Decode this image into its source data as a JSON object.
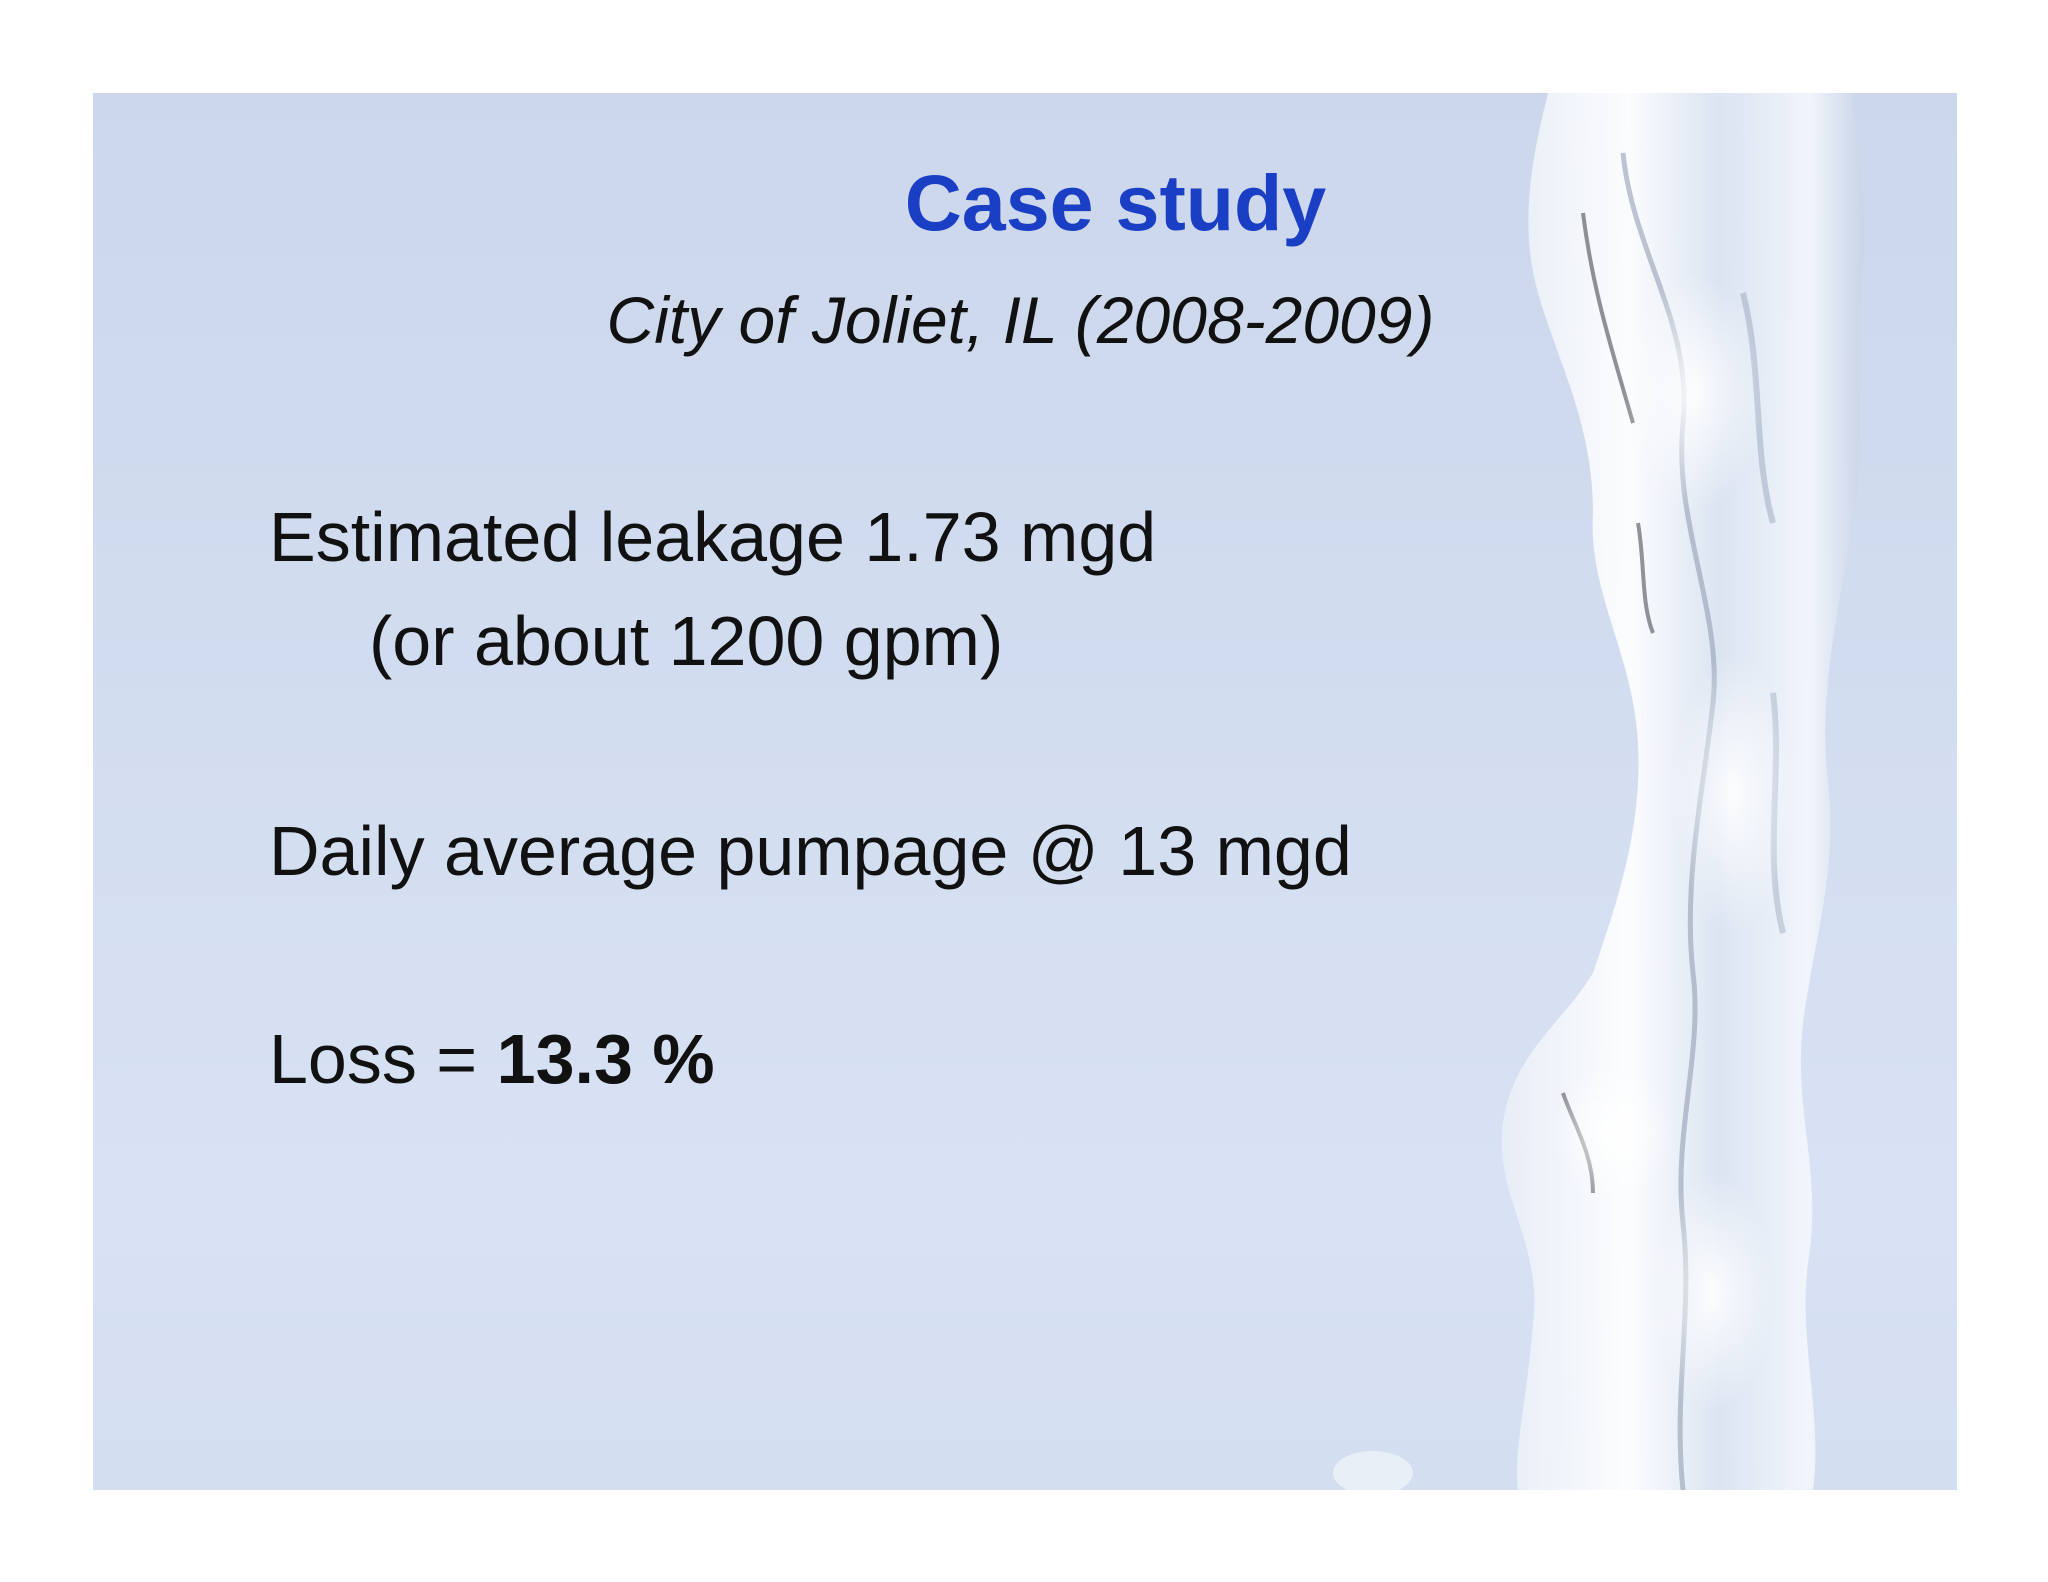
{
  "slide": {
    "title": "Case study",
    "subtitle": "City of Joliet, IL (2008-2009)",
    "leakage_line": "Estimated leakage 1.73 mgd",
    "leakage_sub": "(or about 1200 gpm)",
    "pumpage_line": "Daily average pumpage @ 13 mgd",
    "loss_label": "Loss = ",
    "loss_value": "13.3 %"
  },
  "colors": {
    "title": "#1a3fc4",
    "background": "#d3ddf0",
    "text": "#111111"
  }
}
